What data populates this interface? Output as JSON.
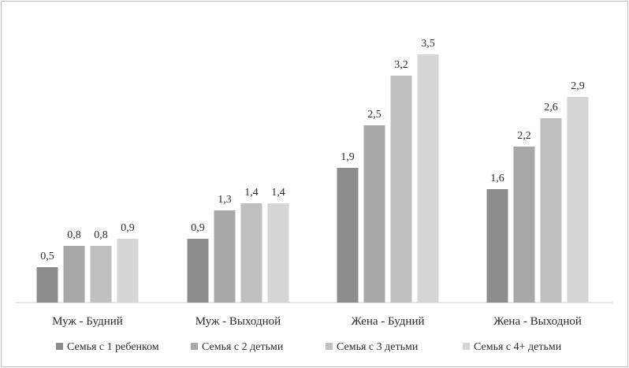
{
  "chart_data": {
    "type": "bar",
    "categories": [
      "Муж - Будний",
      "Муж - Выходной",
      "Жена - Будний",
      "Жена - Выходной"
    ],
    "series": [
      {
        "name": "Семья с 1 ребенком",
        "values": [
          0.5,
          0.9,
          1.9,
          1.6
        ],
        "labels": [
          "0,5",
          "0,9",
          "1,9",
          "1,6"
        ],
        "color": "#8c8c8c"
      },
      {
        "name": "Семья с 2 детьми",
        "values": [
          0.8,
          1.3,
          2.5,
          2.2
        ],
        "labels": [
          "0,8",
          "1,3",
          "2,5",
          "2,2"
        ],
        "color": "#a8a8a8"
      },
      {
        "name": "Семья с 3 детьми",
        "values": [
          0.8,
          1.4,
          3.2,
          2.6
        ],
        "labels": [
          "0,8",
          "1,4",
          "3,2",
          "2,6"
        ],
        "color": "#bfbfbf"
      },
      {
        "name": "Семья с 4+ детьми",
        "values": [
          0.9,
          1.4,
          3.5,
          2.9
        ],
        "labels": [
          "0,9",
          "1,4",
          "3,5",
          "2,9"
        ],
        "color": "#d6d6d6"
      }
    ],
    "ylim": [
      0,
      3.5
    ],
    "grid": false,
    "legend_position": "bottom"
  }
}
